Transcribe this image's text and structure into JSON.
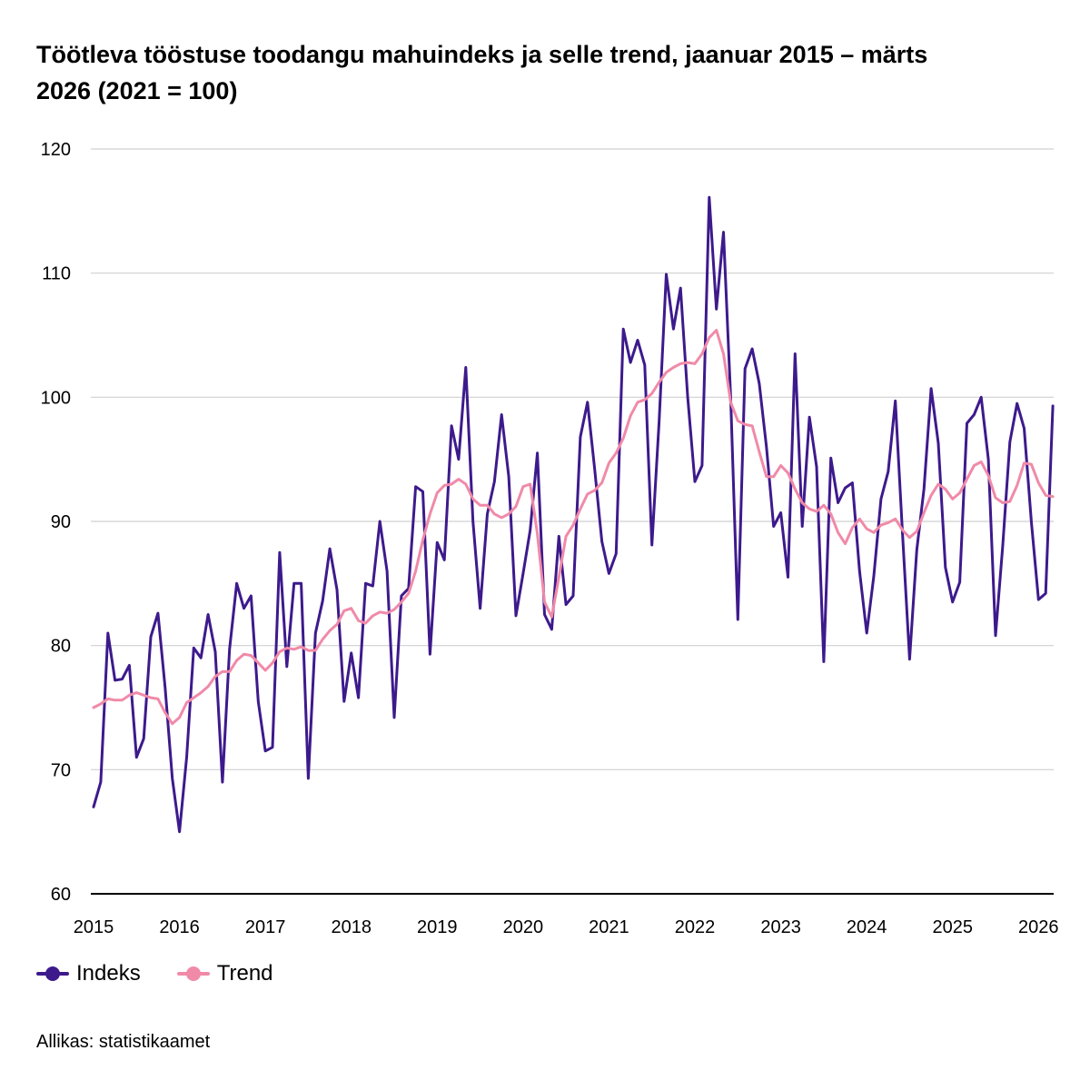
{
  "chart_data": {
    "type": "line",
    "title_line1": "Töötleva tööstuse toodangu mahuindeks ja selle trend, jaanuar 2015 – märts",
    "title_line2": "2026 (2021 = 100)",
    "xlabel": "",
    "ylabel": "",
    "ylim": [
      60,
      120
    ],
    "yticks": [
      "60",
      "70",
      "80",
      "90",
      "100",
      "110",
      "120"
    ],
    "x_tick_labels": [
      "2015",
      "2016",
      "2017",
      "2018",
      "2019",
      "2020",
      "2021",
      "2022",
      "2023",
      "2024",
      "2025",
      "2026"
    ],
    "x_start": "2015-01",
    "x_end": "2026-03",
    "grid": true,
    "legend_position": "bottom-left",
    "series": [
      {
        "name": "Indeks",
        "color": "#3d1a8c",
        "values": [
          67.0,
          69.0,
          81.0,
          77.2,
          77.3,
          78.4,
          71.0,
          72.5,
          80.7,
          82.6,
          76.6,
          69.3,
          65.0,
          71.0,
          79.8,
          79.0,
          82.5,
          79.5,
          69.0,
          79.7,
          85.0,
          83.0,
          84.0,
          75.5,
          71.5,
          71.8,
          87.5,
          78.3,
          85.0,
          85.0,
          69.3,
          81.0,
          83.6,
          87.8,
          84.5,
          75.5,
          79.4,
          75.8,
          85.0,
          84.8,
          90.0,
          86.0,
          74.2,
          84.0,
          84.6,
          92.8,
          92.4,
          79.3,
          88.3,
          86.9,
          97.7,
          95.0,
          102.4,
          90.0,
          83.0,
          90.6,
          93.2,
          98.6,
          93.6,
          82.4,
          85.8,
          89.3,
          95.5,
          82.5,
          81.3,
          88.8,
          83.3,
          84.0,
          96.8,
          99.6,
          94.2,
          88.4,
          85.8,
          87.4,
          105.5,
          102.8,
          104.6,
          102.6,
          88.1,
          98.0,
          109.9,
          105.5,
          108.8,
          100.0,
          93.2,
          94.5,
          116.1,
          107.1,
          113.3,
          100.0,
          82.1,
          102.3,
          103.9,
          101.1,
          96.0,
          89.6,
          90.7,
          85.5,
          103.5,
          89.6,
          98.4,
          94.4,
          78.7,
          95.1,
          91.5,
          92.7,
          93.1,
          86.0,
          81.0,
          85.6,
          91.8,
          94.0,
          99.7,
          89.0,
          78.9,
          87.7,
          92.6,
          100.7,
          96.3,
          86.3,
          83.5,
          85.1,
          97.9,
          98.6,
          100.0,
          95.0,
          80.8,
          88.0,
          96.4,
          99.5,
          97.5,
          90.0,
          83.7,
          84.2,
          99.3
        ]
      },
      {
        "name": "Trend",
        "color": "#f08aa8",
        "values": [
          75.0,
          75.3,
          75.7,
          75.6,
          75.6,
          76.0,
          76.2,
          76.0,
          75.8,
          75.7,
          74.6,
          73.7,
          74.2,
          75.4,
          75.8,
          76.2,
          76.7,
          77.5,
          77.9,
          77.9,
          78.8,
          79.3,
          79.2,
          78.6,
          78.0,
          78.6,
          79.5,
          79.8,
          79.7,
          79.9,
          79.6,
          79.6,
          80.5,
          81.2,
          81.7,
          82.8,
          83.0,
          82.0,
          81.8,
          82.4,
          82.7,
          82.6,
          82.9,
          83.5,
          84.2,
          86.0,
          88.5,
          90.6,
          92.3,
          92.9,
          93.0,
          93.4,
          93.0,
          91.8,
          91.3,
          91.3,
          90.6,
          90.3,
          90.6,
          91.2,
          92.8,
          93.0,
          89.0,
          83.5,
          82.3,
          85.5,
          88.8,
          89.7,
          91.0,
          92.2,
          92.5,
          93.1,
          94.7,
          95.5,
          96.7,
          98.5,
          99.6,
          99.8,
          100.3,
          101.2,
          102.0,
          102.4,
          102.7,
          102.8,
          102.7,
          103.5,
          104.8,
          105.4,
          103.5,
          99.6,
          98.1,
          97.8,
          97.7,
          95.6,
          93.6,
          93.6,
          94.5,
          93.9,
          92.6,
          91.5,
          91.0,
          90.8,
          91.3,
          90.6,
          89.1,
          88.2,
          89.5,
          90.2,
          89.4,
          89.1,
          89.7,
          89.9,
          90.2,
          89.3,
          88.7,
          89.2,
          90.7,
          92.1,
          93.0,
          92.6,
          91.8,
          92.3,
          93.4,
          94.5,
          94.8,
          93.7,
          91.9,
          91.5,
          91.6,
          92.9,
          94.7,
          94.6,
          93.1,
          92.1,
          92.0
        ]
      }
    ]
  },
  "source": "Allikas: statistikaamet"
}
